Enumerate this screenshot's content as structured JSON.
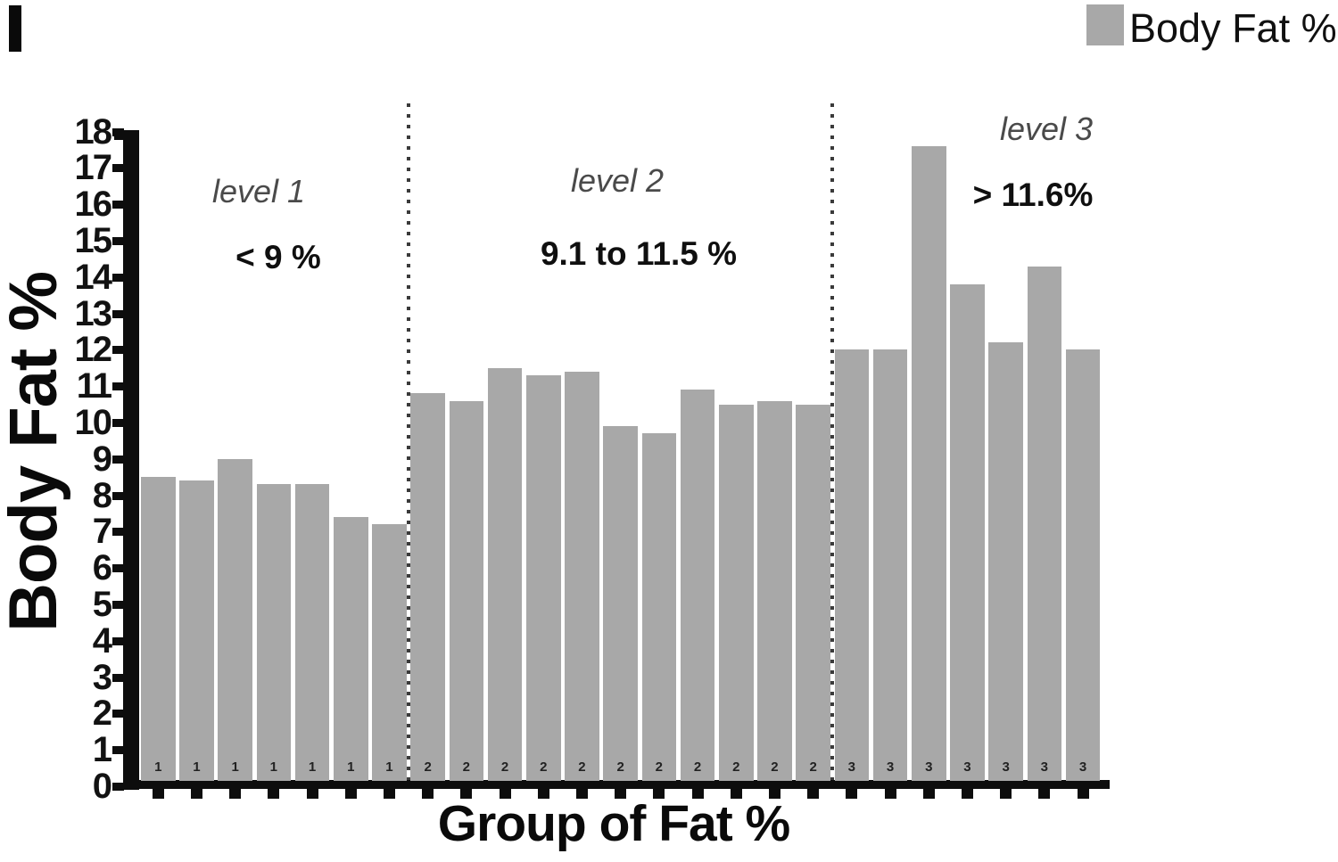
{
  "legend": {
    "label": "Body Fat %",
    "swatch_color": "#a8a8a8"
  },
  "chart_data": {
    "type": "bar",
    "title": "",
    "ylabel": "Body Fat %",
    "xlabel": "Group of Fat %",
    "ylim": [
      0,
      18
    ],
    "ytick_step": 1,
    "grid": false,
    "legend_position": "top-right",
    "legend_entries": [
      "Body Fat %"
    ],
    "bar_color": "#a8a8a8",
    "groups": [
      {
        "level_label": "level 1",
        "range_label": "< 9 %",
        "bar_tick_label": "1",
        "values": [
          8.5,
          8.4,
          9.0,
          8.3,
          8.3,
          7.4,
          7.2
        ]
      },
      {
        "level_label": "level 2",
        "range_label": "9.1 to 11.5 %",
        "bar_tick_label": "2",
        "values": [
          10.8,
          10.6,
          11.5,
          11.3,
          11.4,
          9.9,
          9.7,
          10.9,
          10.5,
          10.6,
          10.5
        ]
      },
      {
        "level_label": "level 3",
        "range_label": "> 11.6%",
        "bar_tick_label": "3",
        "values": [
          12.0,
          12.0,
          17.6,
          13.8,
          12.2,
          14.3,
          12.0
        ]
      }
    ]
  }
}
